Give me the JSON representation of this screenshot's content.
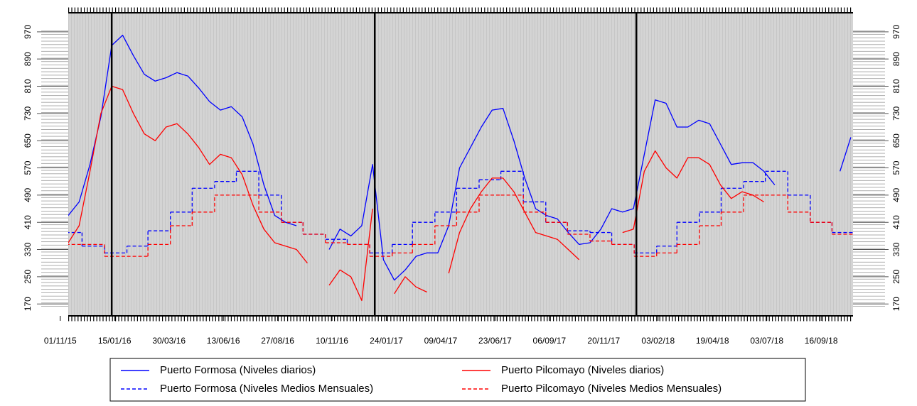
{
  "chart_data": {
    "type": "line",
    "x": [
      "2015-11-12",
      "2015-11-27",
      "2015-12-12",
      "2015-12-27",
      "2016-01-11",
      "2016-01-26",
      "2016-02-10",
      "2016-02-25",
      "2016-03-11",
      "2016-03-26",
      "2016-04-10",
      "2016-04-25",
      "2016-05-10",
      "2016-05-25",
      "2016-06-09",
      "2016-06-24",
      "2016-07-09",
      "2016-07-24",
      "2016-08-08",
      "2016-08-23",
      "2016-09-07",
      "2016-09-22",
      "2016-10-07",
      "2016-10-22",
      "2016-11-06",
      "2016-11-21",
      "2016-12-06",
      "2016-12-21",
      "2017-01-05",
      "2017-01-20",
      "2017-02-04",
      "2017-02-19",
      "2017-03-06",
      "2017-03-21",
      "2017-04-05",
      "2017-04-20",
      "2017-05-05",
      "2017-05-20",
      "2017-06-04",
      "2017-06-19",
      "2017-07-04",
      "2017-07-19",
      "2017-08-03",
      "2017-08-18",
      "2017-09-02",
      "2017-09-17",
      "2017-10-02",
      "2017-10-17",
      "2017-11-01",
      "2017-11-16",
      "2017-12-01",
      "2017-12-16",
      "2017-12-31",
      "2018-01-15",
      "2018-01-30",
      "2018-02-14",
      "2018-03-01",
      "2018-03-16",
      "2018-03-31",
      "2018-04-15",
      "2018-04-30",
      "2018-05-15",
      "2018-05-30",
      "2018-06-14",
      "2018-06-29",
      "2018-07-14",
      "2018-07-29",
      "2018-08-13",
      "2018-08-28",
      "2018-09-12",
      "2018-09-27",
      "2018-10-12",
      "2018-10-27"
    ],
    "xlim": [
      "2015-11-12",
      "2018-10-30"
    ],
    "xticks": [
      {
        "value": "2015-11-01",
        "label": "01/11/15"
      },
      {
        "value": "2016-01-15",
        "label": "15/01/16"
      },
      {
        "value": "2016-03-30",
        "label": "30/03/16"
      },
      {
        "value": "2016-06-13",
        "label": "13/06/16"
      },
      {
        "value": "2016-08-27",
        "label": "27/08/16"
      },
      {
        "value": "2016-11-10",
        "label": "10/11/16"
      },
      {
        "value": "2017-01-24",
        "label": "24/01/17"
      },
      {
        "value": "2017-04-09",
        "label": "09/04/17"
      },
      {
        "value": "2017-06-23",
        "label": "23/06/17"
      },
      {
        "value": "2017-09-06",
        "label": "06/09/17"
      },
      {
        "value": "2017-11-20",
        "label": "20/11/17"
      },
      {
        "value": "2018-02-03",
        "label": "03/02/18"
      },
      {
        "value": "2018-04-19",
        "label": "19/04/18"
      },
      {
        "value": "2018-07-03",
        "label": "03/07/18"
      },
      {
        "value": "2018-09-16",
        "label": "16/09/18"
      }
    ],
    "ylim": [
      135,
      1026
    ],
    "yticks": [
      170,
      250,
      330,
      410,
      490,
      570,
      650,
      730,
      810,
      890,
      970
    ],
    "right_axis": true,
    "vlines": [
      "2016-01-11",
      "2017-01-08",
      "2018-01-04"
    ],
    "series": [
      {
        "name": "Puerto Formosa (Niveles diarios)",
        "color": "#0000ff",
        "dashed": false,
        "values": [
          430,
          470,
          580,
          720,
          930,
          960,
          900,
          845,
          825,
          835,
          850,
          840,
          805,
          765,
          740,
          750,
          720,
          640,
          520,
          430,
          410,
          400,
          null,
          null,
          330,
          390,
          370,
          400,
          580,
          300,
          240,
          270,
          310,
          320,
          320,
          400,
          570,
          630,
          690,
          740,
          745,
          650,
          540,
          450,
          430,
          420,
          380,
          345,
          350,
          390,
          450,
          440,
          450,
          610,
          770,
          760,
          690,
          690,
          710,
          700,
          640,
          580,
          585,
          585,
          560,
          520,
          null,
          null,
          null,
          null,
          null,
          560,
          660
        ]
      },
      {
        "name": "Puerto Formosa (Niveles Medios Mensuales)",
        "color": "#0000ff",
        "dashed": true,
        "step": true,
        "x": [
          "2015-11",
          "2015-12",
          "2016-01",
          "2016-02",
          "2016-03",
          "2016-04",
          "2016-05",
          "2016-06",
          "2016-07",
          "2016-08",
          "2016-09",
          "2016-10",
          "2016-11",
          "2016-12",
          "2017-01",
          "2017-02",
          "2017-03",
          "2017-04",
          "2017-05",
          "2017-06",
          "2017-07",
          "2017-08",
          "2017-09",
          "2017-10",
          "2017-11",
          "2017-12",
          "2018-01",
          "2018-02",
          "2018-03",
          "2018-04",
          "2018-05",
          "2018-06",
          "2018-07",
          "2018-08",
          "2018-09",
          "2018-10"
        ],
        "values": [
          380,
          340,
          320,
          340,
          385,
          440,
          510,
          530,
          560,
          490,
          410,
          375,
          360,
          345,
          320,
          345,
          410,
          440,
          510,
          535,
          560,
          470,
          410,
          385,
          380,
          345,
          320,
          340,
          410,
          440,
          510,
          530,
          560,
          490,
          410,
          380
        ]
      },
      {
        "name": "Puerto Pilcomayo (Niveles diarios)",
        "color": "#ff0000",
        "dashed": false,
        "values": [
          350,
          400,
          560,
          730,
          810,
          800,
          730,
          670,
          650,
          690,
          700,
          670,
          630,
          580,
          610,
          600,
          550,
          460,
          390,
          350,
          340,
          330,
          290,
          null,
          225,
          270,
          250,
          180,
          450,
          null,
          200,
          250,
          220,
          205,
          null,
          260,
          380,
          450,
          500,
          540,
          540,
          500,
          440,
          380,
          370,
          360,
          330,
          300,
          null,
          null,
          null,
          380,
          390,
          560,
          620,
          570,
          540,
          600,
          600,
          580,
          520,
          480,
          500,
          490,
          470,
          null,
          null,
          null,
          null,
          null,
          null,
          null,
          null
        ]
      },
      {
        "name": "Puerto Pilcomayo (Niveles Medios Mensuales)",
        "color": "#ff0000",
        "dashed": true,
        "step": true,
        "x": [
          "2015-11",
          "2015-12",
          "2016-01",
          "2016-02",
          "2016-03",
          "2016-04",
          "2016-05",
          "2016-06",
          "2016-07",
          "2016-08",
          "2016-09",
          "2016-10",
          "2016-11",
          "2016-12",
          "2017-01",
          "2017-02",
          "2017-03",
          "2017-04",
          "2017-05",
          "2017-06",
          "2017-07",
          "2017-08",
          "2017-09",
          "2017-10",
          "2017-11",
          "2017-12",
          "2018-01",
          "2018-02",
          "2018-03",
          "2018-04",
          "2018-05",
          "2018-06",
          "2018-07",
          "2018-08",
          "2018-09",
          "2018-10"
        ],
        "values": [
          345,
          345,
          310,
          310,
          345,
          400,
          440,
          490,
          490,
          440,
          410,
          375,
          350,
          345,
          310,
          320,
          345,
          400,
          440,
          490,
          490,
          440,
          410,
          375,
          355,
          345,
          310,
          320,
          345,
          400,
          440,
          490,
          490,
          440,
          410,
          375
        ]
      }
    ]
  }
}
